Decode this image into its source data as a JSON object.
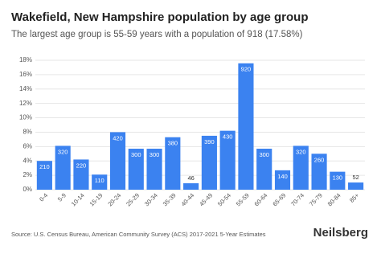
{
  "chart_data": {
    "type": "bar",
    "title": "Wakefield, New Hampshire population by age group",
    "subtitle": "The largest age group is 55-59 years with a population of 918 (17.58%)",
    "categories": [
      "0-4",
      "5-9",
      "10-14",
      "15-19",
      "20-24",
      "25-29",
      "30-34",
      "35-39",
      "40-44",
      "45-49",
      "50-54",
      "55-59",
      "60-64",
      "65-69",
      "70-74",
      "75-79",
      "80-84",
      "85+"
    ],
    "values": [
      4.0,
      6.1,
      4.2,
      2.1,
      8.0,
      5.7,
      5.7,
      7.3,
      0.9,
      7.5,
      8.2,
      17.58,
      5.7,
      2.7,
      6.1,
      5.0,
      2.5,
      1.0
    ],
    "counts": [
      210,
      320,
      220,
      110,
      420,
      300,
      300,
      380,
      46,
      390,
      430,
      920,
      300,
      140,
      320,
      260,
      130,
      52
    ],
    "color": "#3b82f0",
    "ylim": [
      0,
      18
    ],
    "yticks": [
      {
        "value": 0,
        "label": "0%"
      },
      {
        "value": 2,
        "label": "2%"
      },
      {
        "value": 4,
        "label": "4%"
      },
      {
        "value": 6,
        "label": "6%"
      },
      {
        "value": 8,
        "label": "8%"
      },
      {
        "value": 10,
        "label": "10%"
      },
      {
        "value": 12,
        "label": "12%"
      },
      {
        "value": 14,
        "label": "14%"
      },
      {
        "value": 16,
        "label": "16%"
      },
      {
        "value": 18,
        "label": "18%"
      }
    ],
    "grid": true,
    "source": "Source: U.S. Census Bureau, American Community Survey (ACS) 2017-2021 5-Year Estimates",
    "brand": "Neilsberg"
  }
}
